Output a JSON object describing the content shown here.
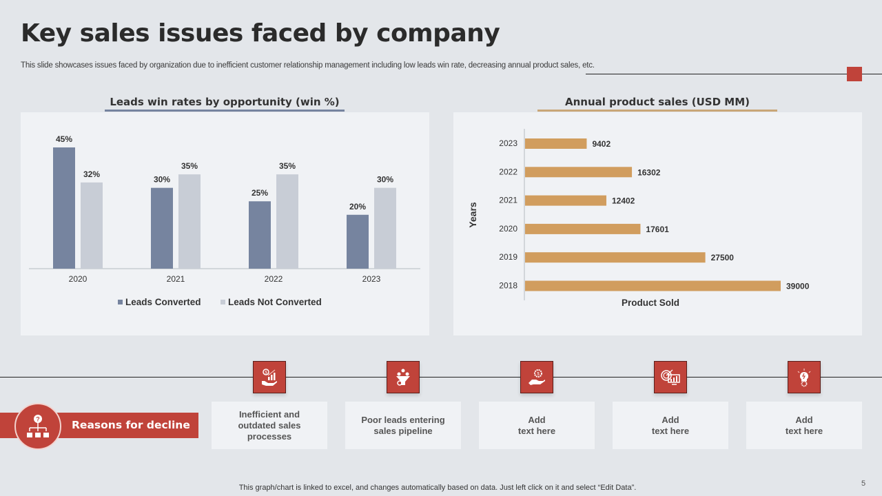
{
  "slide": {
    "title": "Key sales issues faced by company",
    "subtitle": "This slide showcases issues faced by organization due to inefficient customer relationship management including low leads win rate, decreasing annual product sales, etc.",
    "footer_note": "This graph/chart is linked to excel, and changes automatically based on data. Just left click on it and select “Edit Data”.",
    "page_number": "5",
    "accent_color": "#c0433a"
  },
  "chart_data": [
    {
      "type": "bar",
      "title": "Leads win rates by opportunity (win %)",
      "categories": [
        "2020",
        "2021",
        "2022",
        "2023"
      ],
      "series": [
        {
          "name": "Leads Converted",
          "color": "#76849f",
          "values": [
            45,
            30,
            25,
            20
          ],
          "labels": [
            "45%",
            "30%",
            "25%",
            "20%"
          ]
        },
        {
          "name": "Leads Not Converted",
          "color": "#c8cdd6",
          "values": [
            32,
            35,
            35,
            30
          ],
          "labels": [
            "32%",
            "35%",
            "35%",
            "30%"
          ]
        }
      ],
      "xlabel": "",
      "ylabel": "",
      "ylim": [
        0,
        50
      ],
      "grid": false,
      "legend": "bottom"
    },
    {
      "type": "bar",
      "orientation": "horizontal",
      "title": "Annual product sales (USD MM)",
      "categories": [
        "2023",
        "2022",
        "2021",
        "2020",
        "2019",
        "2018"
      ],
      "values": [
        9402,
        16302,
        12402,
        17601,
        27500,
        39000
      ],
      "labels": [
        "9402",
        "16302",
        "12402",
        "17601",
        "27500",
        "39000"
      ],
      "color": "#d19d5e",
      "xlabel": "Product Sold",
      "ylabel": "Years",
      "xlim": [
        0,
        42000
      ],
      "grid": false
    }
  ],
  "reasons": {
    "label": "Reasons for decline",
    "items": [
      {
        "icon": "money-growth-hand-icon",
        "text": "Inefficient and\noutdated sales\nprocesses"
      },
      {
        "icon": "leads-funnel-icon",
        "text": "Poor leads entering\nsales pipeline"
      },
      {
        "icon": "hand-gear-dollar-icon",
        "text": "Add\ntext here"
      },
      {
        "icon": "target-dollar-monitor-icon",
        "text": "Add\ntext here"
      },
      {
        "icon": "idea-bulb-gear-icon",
        "text": "Add\ntext here"
      }
    ]
  }
}
